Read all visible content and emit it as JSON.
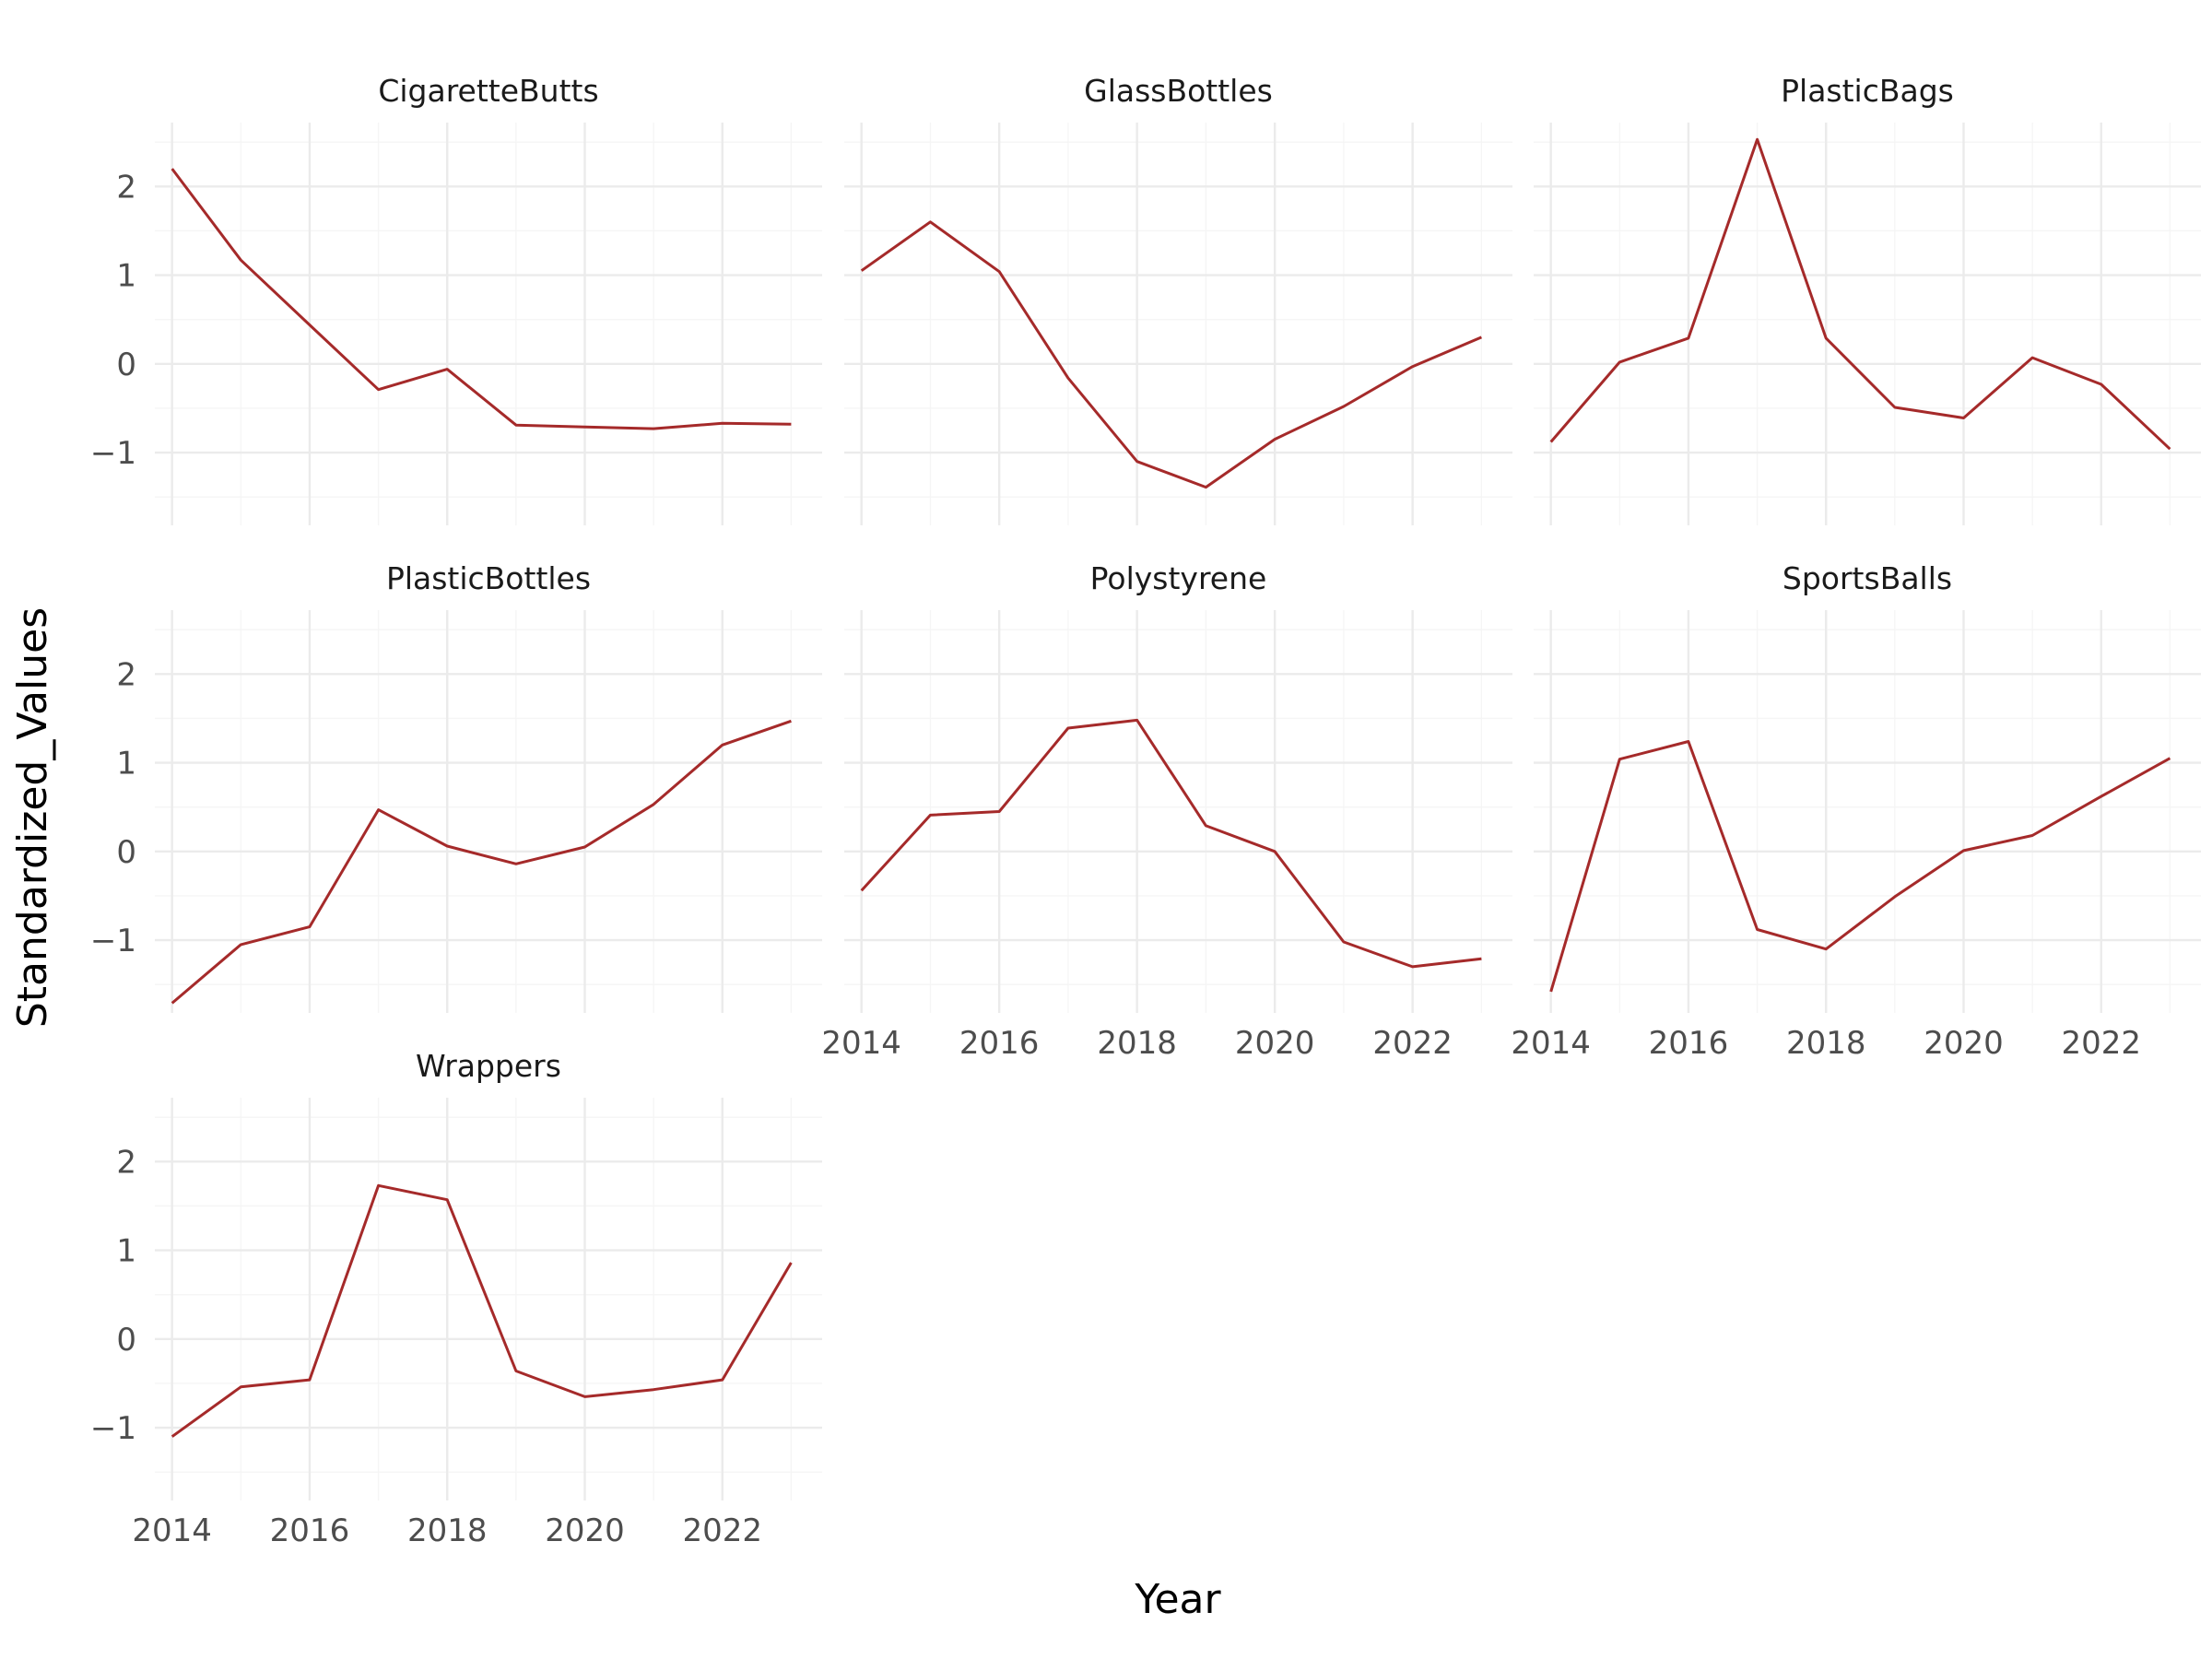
{
  "chart_data": {
    "type": "line",
    "xlabel": "Year",
    "ylabel": "Standardized_Values",
    "x": [
      2014,
      2015,
      2016,
      2017,
      2018,
      2019,
      2020,
      2021,
      2022,
      2023
    ],
    "x_ticks": [
      2014,
      2016,
      2018,
      2020,
      2022
    ],
    "xlim": [
      2013.75,
      2023.45
    ],
    "ylim": [
      -1.82,
      2.72
    ],
    "y_ticks": [
      -1,
      0,
      1,
      2
    ],
    "y_tick_labels": [
      "−1",
      "0",
      "1",
      "2"
    ],
    "grid": true,
    "line_color": "#a52a2a",
    "facets": [
      {
        "name": "CigaretteButts",
        "values": [
          2.2,
          1.17,
          0.44,
          -0.29,
          -0.06,
          -0.69,
          -0.71,
          -0.73,
          -0.67,
          -0.68
        ]
      },
      {
        "name": "GlassBottles",
        "values": [
          1.05,
          1.6,
          1.04,
          -0.16,
          -1.1,
          -1.39,
          -0.85,
          -0.48,
          -0.03,
          0.3
        ]
      },
      {
        "name": "PlasticBags",
        "values": [
          -0.88,
          0.02,
          0.29,
          2.53,
          0.29,
          -0.49,
          -0.61,
          0.07,
          -0.23,
          -0.96
        ]
      },
      {
        "name": "PlasticBottles",
        "values": [
          -1.71,
          -1.05,
          -0.85,
          0.47,
          0.06,
          -0.14,
          0.05,
          0.53,
          1.2,
          1.47
        ]
      },
      {
        "name": "Polystyrene",
        "values": [
          -0.44,
          0.41,
          0.45,
          1.39,
          1.48,
          0.29,
          0.0,
          -1.02,
          -1.3,
          -1.21
        ]
      },
      {
        "name": "SportsBalls",
        "values": [
          -1.58,
          1.04,
          1.24,
          -0.88,
          -1.1,
          -0.51,
          0.01,
          0.18,
          0.62,
          1.05
        ]
      },
      {
        "name": "Wrappers",
        "values": [
          -1.1,
          -0.54,
          -0.46,
          1.73,
          1.57,
          -0.36,
          -0.65,
          -0.57,
          -0.46,
          0.86
        ]
      }
    ]
  }
}
